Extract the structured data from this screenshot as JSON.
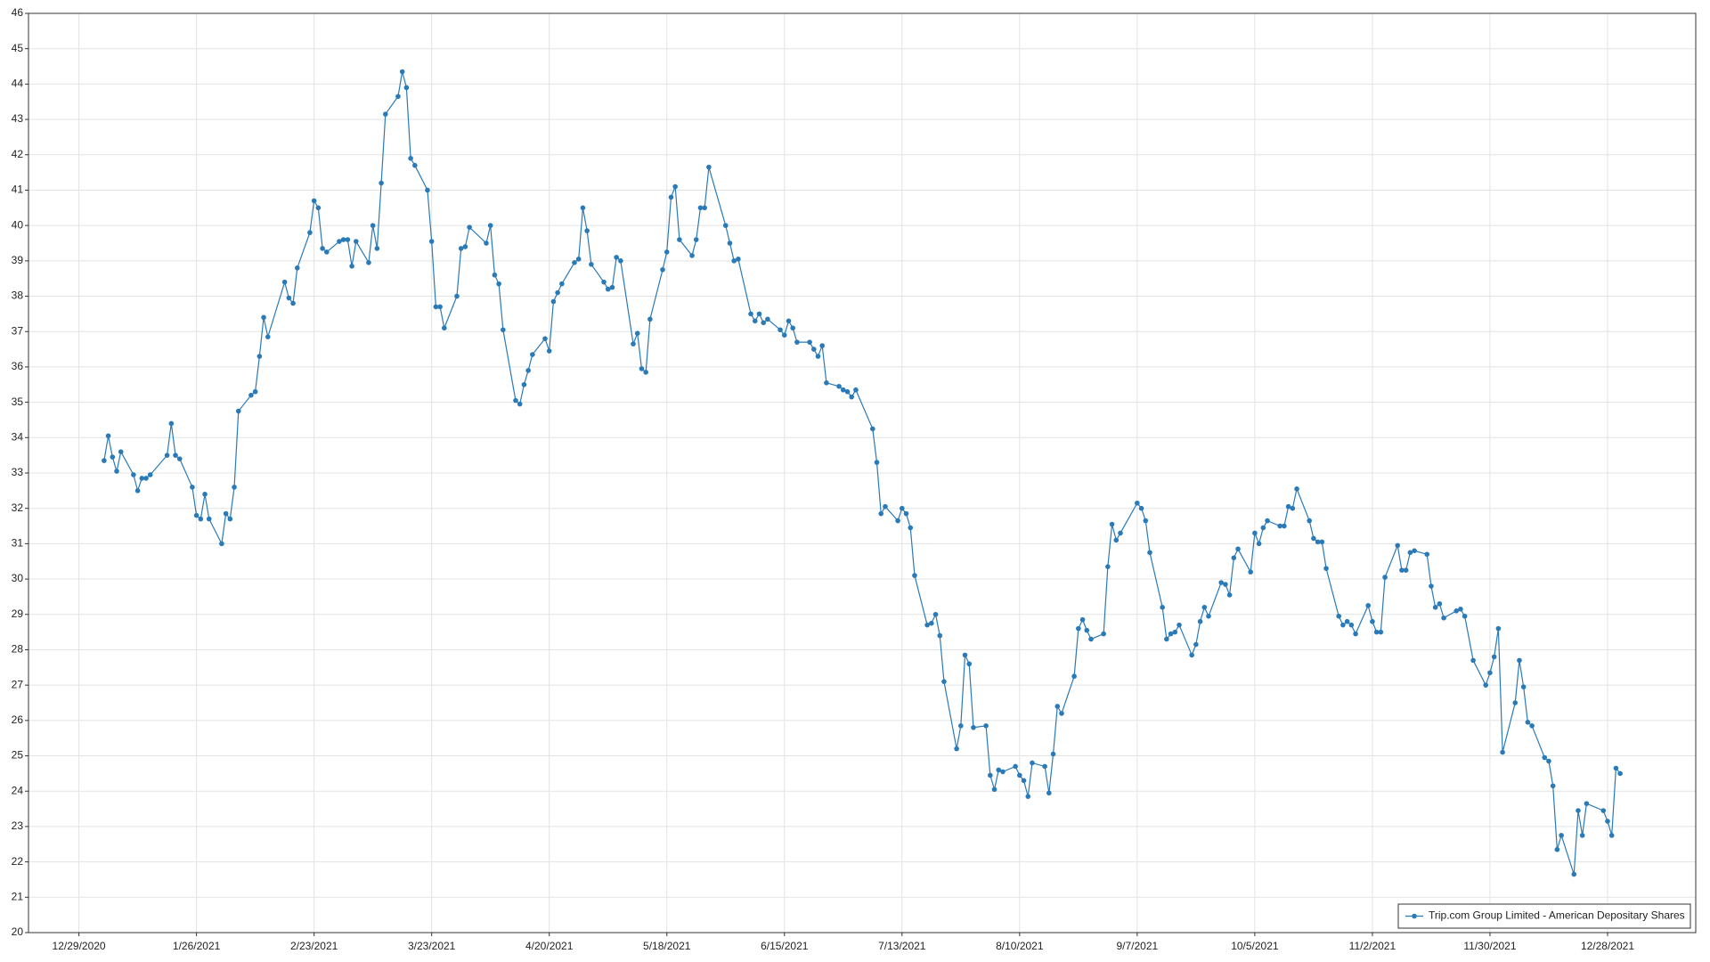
{
  "chart_data": {
    "type": "line",
    "grid": true,
    "legend": "lower right",
    "xlim": [
      "12/17/2020",
      "1/18/2022"
    ],
    "xticks": [
      "12/29/2020",
      "1/26/2021",
      "2/23/2021",
      "3/23/2021",
      "4/20/2021",
      "5/18/2021",
      "6/15/2021",
      "7/13/2021",
      "8/10/2021",
      "9/7/2021",
      "10/5/2021",
      "11/2/2021",
      "11/30/2021",
      "12/28/2021"
    ],
    "ylim": [
      20,
      46
    ],
    "yticks": [
      20,
      21,
      22,
      23,
      24,
      25,
      26,
      27,
      28,
      29,
      30,
      31,
      32,
      33,
      34,
      35,
      36,
      37,
      38,
      39,
      40,
      41,
      42,
      43,
      44,
      45,
      46
    ],
    "x": [
      "1/4/2021",
      "1/5/2021",
      "1/6/2021",
      "1/7/2021",
      "1/8/2021",
      "1/11/2021",
      "1/12/2021",
      "1/13/2021",
      "1/14/2021",
      "1/15/2021",
      "1/19/2021",
      "1/20/2021",
      "1/21/2021",
      "1/22/2021",
      "1/25/2021",
      "1/26/2021",
      "1/27/2021",
      "1/28/2021",
      "1/29/2021",
      "2/1/2021",
      "2/2/2021",
      "2/3/2021",
      "2/4/2021",
      "2/5/2021",
      "2/8/2021",
      "2/9/2021",
      "2/10/2021",
      "2/11/2021",
      "2/12/2021",
      "2/16/2021",
      "2/17/2021",
      "2/18/2021",
      "2/19/2021",
      "2/22/2021",
      "2/23/2021",
      "2/24/2021",
      "2/25/2021",
      "2/26/2021",
      "3/1/2021",
      "3/2/2021",
      "3/3/2021",
      "3/4/2021",
      "3/5/2021",
      "3/8/2021",
      "3/9/2021",
      "3/10/2021",
      "3/11/2021",
      "3/12/2021",
      "3/15/2021",
      "3/16/2021",
      "3/17/2021",
      "3/18/2021",
      "3/19/2021",
      "3/22/2021",
      "3/23/2021",
      "3/24/2021",
      "3/25/2021",
      "3/26/2021",
      "3/29/2021",
      "3/30/2021",
      "3/31/2021",
      "4/1/2021",
      "4/5/2021",
      "4/6/2021",
      "4/7/2021",
      "4/8/2021",
      "4/9/2021",
      "4/12/2021",
      "4/13/2021",
      "4/14/2021",
      "4/15/2021",
      "4/16/2021",
      "4/19/2021",
      "4/20/2021",
      "4/21/2021",
      "4/22/2021",
      "4/23/2021",
      "4/26/2021",
      "4/27/2021",
      "4/28/2021",
      "4/29/2021",
      "4/30/2021",
      "5/3/2021",
      "5/4/2021",
      "5/5/2021",
      "5/6/2021",
      "5/7/2021",
      "5/10/2021",
      "5/11/2021",
      "5/12/2021",
      "5/13/2021",
      "5/14/2021",
      "5/17/2021",
      "5/18/2021",
      "5/19/2021",
      "5/20/2021",
      "5/21/2021",
      "5/24/2021",
      "5/25/2021",
      "5/26/2021",
      "5/27/2021",
      "5/28/2021",
      "6/1/2021",
      "6/2/2021",
      "6/3/2021",
      "6/4/2021",
      "6/7/2021",
      "6/8/2021",
      "6/9/2021",
      "6/10/2021",
      "6/11/2021",
      "6/14/2021",
      "6/15/2021",
      "6/16/2021",
      "6/17/2021",
      "6/18/2021",
      "6/21/2021",
      "6/22/2021",
      "6/23/2021",
      "6/24/2021",
      "6/25/2021",
      "6/28/2021",
      "6/29/2021",
      "6/30/2021",
      "7/1/2021",
      "7/2/2021",
      "7/6/2021",
      "7/7/2021",
      "7/8/2021",
      "7/9/2021",
      "7/12/2021",
      "7/13/2021",
      "7/14/2021",
      "7/15/2021",
      "7/16/2021",
      "7/19/2021",
      "7/20/2021",
      "7/21/2021",
      "7/22/2021",
      "7/23/2021",
      "7/26/2021",
      "7/27/2021",
      "7/28/2021",
      "7/29/2021",
      "7/30/2021",
      "8/2/2021",
      "8/3/2021",
      "8/4/2021",
      "8/5/2021",
      "8/6/2021",
      "8/9/2021",
      "8/10/2021",
      "8/11/2021",
      "8/12/2021",
      "8/13/2021",
      "8/16/2021",
      "8/17/2021",
      "8/18/2021",
      "8/19/2021",
      "8/20/2021",
      "8/23/2021",
      "8/24/2021",
      "8/25/2021",
      "8/26/2021",
      "8/27/2021",
      "8/30/2021",
      "8/31/2021",
      "9/1/2021",
      "9/2/2021",
      "9/3/2021",
      "9/7/2021",
      "9/8/2021",
      "9/9/2021",
      "9/10/2021",
      "9/13/2021",
      "9/14/2021",
      "9/15/2021",
      "9/16/2021",
      "9/17/2021",
      "9/20/2021",
      "9/21/2021",
      "9/22/2021",
      "9/23/2021",
      "9/24/2021",
      "9/27/2021",
      "9/28/2021",
      "9/29/2021",
      "9/30/2021",
      "10/1/2021",
      "10/4/2021",
      "10/5/2021",
      "10/6/2021",
      "10/7/2021",
      "10/8/2021",
      "10/11/2021",
      "10/12/2021",
      "10/13/2021",
      "10/14/2021",
      "10/15/2021",
      "10/18/2021",
      "10/19/2021",
      "10/20/2021",
      "10/21/2021",
      "10/22/2021",
      "10/25/2021",
      "10/26/2021",
      "10/27/2021",
      "10/28/2021",
      "10/29/2021",
      "11/1/2021",
      "11/2/2021",
      "11/3/2021",
      "11/4/2021",
      "11/5/2021",
      "11/8/2021",
      "11/9/2021",
      "11/10/2021",
      "11/11/2021",
      "11/12/2021",
      "11/15/2021",
      "11/16/2021",
      "11/17/2021",
      "11/18/2021",
      "11/19/2021",
      "11/22/2021",
      "11/23/2021",
      "11/24/2021",
      "11/26/2021",
      "11/29/2021",
      "11/30/2021",
      "12/1/2021",
      "12/2/2021",
      "12/3/2021",
      "12/6/2021",
      "12/7/2021",
      "12/8/2021",
      "12/9/2021",
      "12/10/2021",
      "12/13/2021",
      "12/14/2021",
      "12/15/2021",
      "12/16/2021",
      "12/17/2021",
      "12/20/2021",
      "12/21/2021",
      "12/22/2021",
      "12/23/2021",
      "12/27/2021",
      "12/28/2021",
      "12/29/2021",
      "12/30/2021",
      "12/31/2021"
    ],
    "series": [
      {
        "name": "Trip.com Group Limited - American Depositary Shares",
        "color": "#2a7ab8",
        "values": [
          33.35,
          34.05,
          33.45,
          33.05,
          33.6,
          32.95,
          32.5,
          32.85,
          32.85,
          32.95,
          33.5,
          34.4,
          33.5,
          33.4,
          32.6,
          31.8,
          31.7,
          32.4,
          31.7,
          31.0,
          31.85,
          31.7,
          32.6,
          34.75,
          35.2,
          35.3,
          36.3,
          37.4,
          36.85,
          38.4,
          37.95,
          37.8,
          38.8,
          39.8,
          40.7,
          40.5,
          39.35,
          39.25,
          39.55,
          39.6,
          39.6,
          38.85,
          39.55,
          38.95,
          40.0,
          39.35,
          41.2,
          43.15,
          43.65,
          44.35,
          43.9,
          41.9,
          41.7,
          41.0,
          39.55,
          37.7,
          37.7,
          37.1,
          38.0,
          39.35,
          39.4,
          39.95,
          39.5,
          40.0,
          38.6,
          38.35,
          37.05,
          35.05,
          34.95,
          35.5,
          35.9,
          36.35,
          36.8,
          36.45,
          37.85,
          38.1,
          38.35,
          38.95,
          39.05,
          40.5,
          39.85,
          38.9,
          38.4,
          38.2,
          38.25,
          39.1,
          39.0,
          36.65,
          36.95,
          35.95,
          35.85,
          37.35,
          38.75,
          39.25,
          40.8,
          41.1,
          39.6,
          39.15,
          39.6,
          40.5,
          40.5,
          41.65,
          40.0,
          39.5,
          39.0,
          39.05,
          37.5,
          37.3,
          37.5,
          37.25,
          37.35,
          37.05,
          36.9,
          37.3,
          37.1,
          36.7,
          36.7,
          36.5,
          36.3,
          36.6,
          35.55,
          35.45,
          35.35,
          35.3,
          35.15,
          35.35,
          34.25,
          33.3,
          31.85,
          32.05,
          31.65,
          32.0,
          31.85,
          31.45,
          30.1,
          28.7,
          28.75,
          29.0,
          28.4,
          27.1,
          25.2,
          25.85,
          27.85,
          27.6,
          25.8,
          25.85,
          24.45,
          24.05,
          24.6,
          24.55,
          24.7,
          24.45,
          24.3,
          23.85,
          24.8,
          24.7,
          23.95,
          25.05,
          26.4,
          26.2,
          27.25,
          28.6,
          28.85,
          28.55,
          28.3,
          28.45,
          30.35,
          31.55,
          31.1,
          31.3,
          32.15,
          32.0,
          31.65,
          30.75,
          29.2,
          28.3,
          28.45,
          28.5,
          28.7,
          27.85,
          28.15,
          28.8,
          29.2,
          28.95,
          29.9,
          29.85,
          29.55,
          30.6,
          30.85,
          30.2,
          31.3,
          31.0,
          31.45,
          31.65,
          31.5,
          31.5,
          32.05,
          32.0,
          32.55,
          31.65,
          31.15,
          31.05,
          31.05,
          30.3,
          28.95,
          28.7,
          28.8,
          28.7,
          28.45,
          29.25,
          28.8,
          28.5,
          28.5,
          30.05,
          30.95,
          30.25,
          30.25,
          30.75,
          30.8,
          30.7,
          29.8,
          29.2,
          29.3,
          28.9,
          29.1,
          29.15,
          28.95,
          27.7,
          27.0,
          27.35,
          27.8,
          28.6,
          25.1,
          26.5,
          27.7,
          26.95,
          25.95,
          25.85,
          24.95,
          24.85,
          24.15,
          22.35,
          22.75,
          21.65,
          23.45,
          22.75,
          23.65,
          23.45,
          23.15,
          22.75,
          24.65,
          24.5
        ]
      }
    ]
  }
}
